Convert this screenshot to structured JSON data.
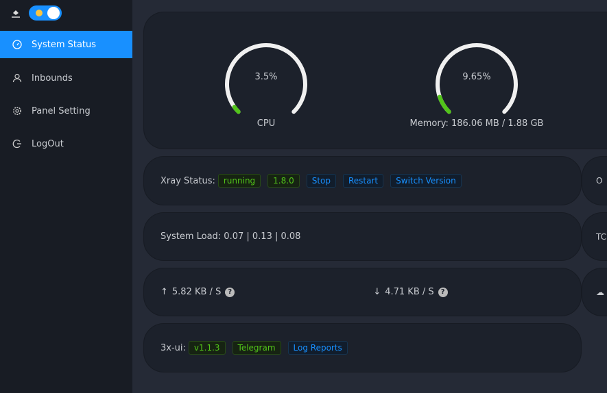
{
  "sidebar": {
    "theme_toggle_on": true,
    "items": [
      {
        "label": "System Status",
        "active": true
      },
      {
        "label": "Inbounds"
      },
      {
        "label": "Panel Setting"
      },
      {
        "label": "LogOut"
      }
    ]
  },
  "gauges": [
    {
      "value_text": "3.5%",
      "percent": 3.5,
      "label": "CPU"
    },
    {
      "value_text": "9.65%",
      "percent": 9.65,
      "label": "Memory: 186.06 MB / 1.88 GB"
    }
  ],
  "xray": {
    "label": "Xray Status:",
    "status": "running",
    "version": "1.8.0",
    "stop": "Stop",
    "restart": "Restart",
    "switch": "Switch Version"
  },
  "load": {
    "text": "System Load: 0.07 | 0.13 | 0.08"
  },
  "traffic": {
    "up": "5.82 KB / S",
    "down": "4.71 KB / S",
    "help": "?"
  },
  "app": {
    "label": "3x-ui:",
    "version": "v1.1.3",
    "telegram": "Telegram",
    "logs": "Log Reports"
  },
  "right_partial": [
    "O",
    "TC"
  ],
  "colors": {
    "accent": "#1890ff",
    "success": "#52c41a"
  }
}
